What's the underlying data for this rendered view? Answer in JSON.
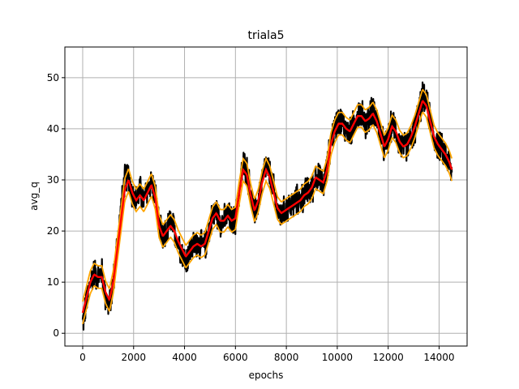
{
  "chart_data": {
    "type": "line",
    "title": "triala5",
    "xlabel": "epochs",
    "ylabel": "avg_q",
    "xlim": [
      -700,
      15100
    ],
    "ylim": [
      -2.5,
      56
    ],
    "xticks": [
      0,
      2000,
      4000,
      6000,
      8000,
      10000,
      12000,
      14000
    ],
    "yticks": [
      0,
      10,
      20,
      30,
      40,
      50
    ],
    "grid": true,
    "noise_amplitude": 2.5,
    "band_offset": 2.2,
    "series": [
      {
        "role": "raw",
        "color": "#000000",
        "x": [
          0,
          150,
          300,
          450,
          600,
          750,
          900,
          1050,
          1200,
          1350,
          1500,
          1650,
          1800,
          1950,
          2100,
          2250,
          2400,
          2550,
          2700,
          2850,
          3000,
          3150,
          3300,
          3450,
          3600,
          3750,
          3900,
          4050,
          4200,
          4350,
          4500,
          4650,
          4800,
          4950,
          5100,
          5250,
          5400,
          5550,
          5700,
          5850,
          6000,
          6150,
          6300,
          6450,
          6600,
          6750,
          6900,
          7050,
          7200,
          7350,
          7500,
          7650,
          7800,
          7950,
          8100,
          8250,
          8400,
          8550,
          8700,
          8850,
          9000,
          9150,
          9300,
          9450,
          9600,
          9750,
          9900,
          10050,
          10200,
          10350,
          10500,
          10650,
          10800,
          10950,
          11100,
          11250,
          11400,
          11550,
          11700,
          11850,
          12000,
          12150,
          12300,
          12450,
          12600,
          12750,
          12900,
          13050,
          13200,
          13350,
          13500,
          13650,
          13800,
          13950,
          14100,
          14250,
          14400,
          14500
        ],
        "values": [
          2,
          6,
          10,
          12,
          11,
          12,
          7,
          5,
          10,
          17,
          24,
          30,
          31,
          27,
          26,
          28,
          26,
          28,
          30,
          27,
          21,
          18,
          20,
          22,
          20,
          18,
          16,
          14,
          16,
          17,
          18,
          17,
          17,
          20,
          23,
          24,
          22,
          22,
          23,
          22,
          22,
          28,
          33,
          32,
          27,
          23,
          26,
          30,
          33,
          31,
          28,
          24,
          23,
          24,
          25,
          25,
          26,
          26,
          27,
          28,
          28,
          31,
          30,
          29,
          32,
          38,
          40,
          42,
          41,
          40,
          39,
          41,
          43,
          43,
          41,
          42,
          44,
          42,
          39,
          36,
          38,
          41,
          40,
          37,
          36,
          37,
          38,
          40,
          43,
          46,
          45,
          42,
          38,
          37,
          36,
          35,
          33,
          31
        ]
      },
      {
        "role": "smoothed",
        "color": "#ff0000",
        "x": [
          0,
          150,
          300,
          450,
          600,
          750,
          900,
          1050,
          1200,
          1350,
          1500,
          1650,
          1800,
          1950,
          2100,
          2250,
          2400,
          2550,
          2700,
          2850,
          3000,
          3150,
          3300,
          3450,
          3600,
          3750,
          3900,
          4050,
          4200,
          4350,
          4500,
          4650,
          4800,
          4950,
          5100,
          5250,
          5400,
          5550,
          5700,
          5850,
          6000,
          6150,
          6300,
          6450,
          6600,
          6750,
          6900,
          7050,
          7200,
          7350,
          7500,
          7650,
          7800,
          7950,
          8100,
          8250,
          8400,
          8550,
          8700,
          8850,
          9000,
          9150,
          9300,
          9450,
          9600,
          9750,
          9900,
          10050,
          10200,
          10350,
          10500,
          10650,
          10800,
          10950,
          11100,
          11250,
          11400,
          11550,
          11700,
          11850,
          12000,
          12150,
          12300,
          12450,
          12600,
          12750,
          12900,
          13050,
          13200,
          13350,
          13500,
          13650,
          13800,
          13950,
          14100,
          14250,
          14400,
          14500
        ],
        "values": [
          4,
          7,
          10,
          11.5,
          11,
          11,
          8,
          6.5,
          10,
          16,
          22,
          28,
          30,
          27.5,
          26,
          27,
          26,
          27.5,
          29,
          26.5,
          21,
          19,
          20,
          21,
          20,
          18,
          16.5,
          15,
          16,
          17,
          17.5,
          17,
          17.5,
          20,
          22.5,
          23.5,
          22,
          22,
          23,
          22,
          22.5,
          27.5,
          32,
          31,
          27,
          24,
          26,
          29.5,
          32,
          30.5,
          27.5,
          24.5,
          23.5,
          24,
          24.5,
          25,
          25.5,
          26,
          27,
          27.5,
          28.5,
          30.5,
          30,
          29.5,
          32,
          37,
          39.5,
          41,
          41,
          40,
          39.5,
          41,
          42.5,
          42.5,
          41.5,
          42,
          43,
          41.5,
          39,
          36.5,
          38,
          40.5,
          39.5,
          37.5,
          36.5,
          37,
          38.5,
          40.5,
          43,
          45.5,
          44.5,
          41.5,
          38.5,
          37,
          36,
          35,
          33.5,
          32
        ]
      },
      {
        "role": "band",
        "color": "#ffa500"
      }
    ]
  }
}
